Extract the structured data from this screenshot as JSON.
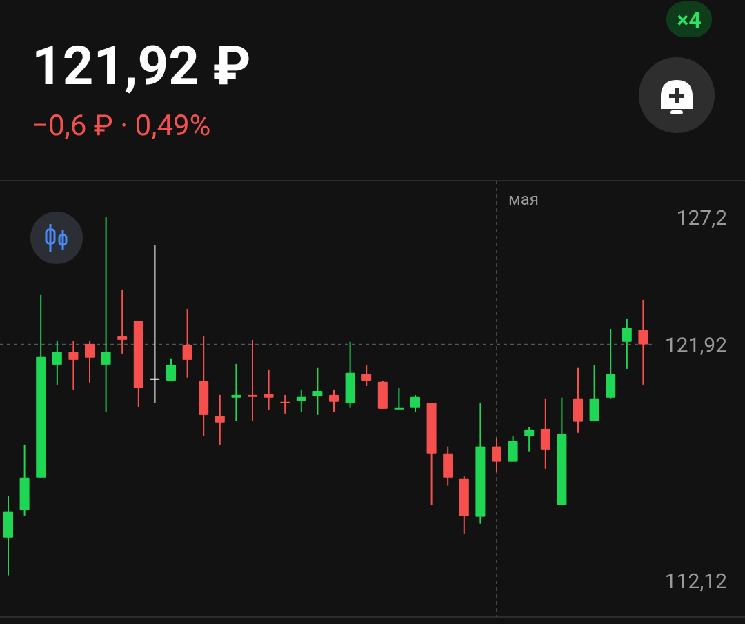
{
  "header": {
    "price": "121,92 ₽",
    "change": "−0,6 ₽ · 0,49%",
    "badge": "×4"
  },
  "chart_data": {
    "type": "candlestick",
    "categories": [
      null,
      null,
      null,
      null,
      null,
      null,
      null,
      null,
      null,
      null,
      null,
      null,
      null,
      null,
      null,
      null,
      null,
      null,
      null,
      null,
      null,
      null,
      null,
      null,
      null,
      null,
      null,
      null,
      null,
      null,
      "мая",
      null,
      null,
      null,
      null,
      null,
      null,
      null,
      null,
      null
    ],
    "open": [
      113.9,
      115.04,
      116.39,
      121.08,
      121.62,
      121.94,
      121.08,
      122.25,
      122.91,
      120.51,
      120.42,
      121.88,
      120.42,
      118.96,
      119.71,
      119.82,
      119.85,
      119.54,
      119.56,
      119.76,
      119.82,
      119.48,
      120.68,
      120.37,
      119.25,
      119.28,
      119.48,
      117.39,
      116.36,
      114.76,
      117.68,
      117.05,
      118.1,
      118.42,
      115.24,
      119.68,
      118.76,
      119.71,
      122.03,
      122.51
    ],
    "high": [
      115.62,
      117.76,
      123.97,
      122.05,
      122.05,
      122.05,
      127.2,
      124.2,
      122.91,
      126.03,
      121.34,
      123.4,
      122.25,
      119.82,
      121.11,
      122.11,
      120.88,
      119.82,
      120.05,
      120.97,
      120.05,
      122.03,
      121.05,
      120.42,
      120.11,
      119.82,
      119.48,
      117.68,
      116.47,
      119.48,
      118.05,
      118.1,
      118.48,
      119.68,
      119.71,
      120.97,
      121.05,
      122.57,
      123.0,
      123.77
    ],
    "low": [
      112.33,
      114.81,
      116.39,
      120.25,
      120.05,
      120.34,
      119.13,
      121.54,
      119.33,
      119.48,
      120.42,
      120.54,
      118.13,
      117.76,
      118.73,
      118.73,
      119.19,
      119.05,
      119.13,
      118.99,
      119.11,
      119.28,
      120.19,
      119.25,
      119.25,
      119.11,
      115.24,
      116.05,
      114.04,
      114.47,
      116.62,
      117.05,
      117.48,
      116.76,
      115.24,
      118.25,
      118.73,
      119.68,
      120.91,
      120.25
    ],
    "close": [
      114.99,
      116.39,
      121.4,
      121.6,
      121.28,
      121.37,
      121.62,
      122.11,
      120.11,
      120.51,
      121.08,
      121.28,
      118.99,
      118.68,
      119.82,
      119.74,
      119.71,
      119.48,
      119.74,
      119.99,
      119.54,
      120.74,
      120.42,
      119.25,
      119.28,
      119.74,
      117.39,
      116.39,
      114.79,
      117.68,
      117.05,
      117.9,
      118.39,
      117.56,
      118.19,
      118.71,
      119.68,
      120.68,
      122.6,
      121.92
    ],
    "up_color": "#1fd655",
    "down_color": "#f5504e",
    "flat_color": "#ffffff",
    "ylim": [
      110.6,
      128.72
    ],
    "yticks": [
      {
        "value": 112.12,
        "label": "112,12"
      },
      {
        "value": 121.92,
        "label": "121,92"
      },
      {
        "value": 127.2,
        "label": "127,2"
      }
    ]
  }
}
